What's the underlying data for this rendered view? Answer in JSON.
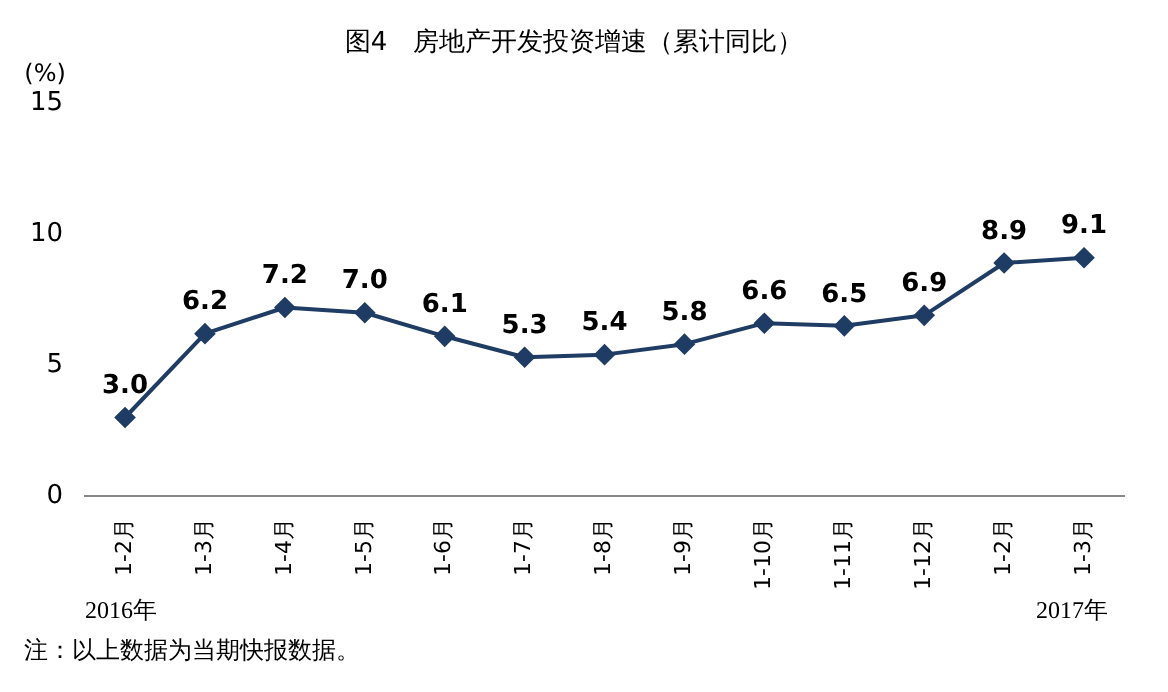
{
  "chart_data": {
    "type": "line",
    "title": "图4　房地产开发投资增速（累计同比）",
    "ylabel": "(%)",
    "categories": [
      "1-2月",
      "1-3月",
      "1-4月",
      "1-5月",
      "1-6月",
      "1-7月",
      "1-8月",
      "1-9月",
      "1-10月",
      "1-11月",
      "1-12月",
      "1-2月",
      "1-3月"
    ],
    "series": [
      {
        "color": "#1f3c64",
        "values": [
          3.0,
          6.2,
          7.2,
          7.0,
          6.1,
          5.3,
          5.4,
          5.8,
          6.6,
          6.5,
          6.9,
          8.9,
          9.1
        ],
        "value_labels": [
          "3.0",
          "6.2",
          "7.2",
          "7.0",
          "6.1",
          "5.3",
          "5.4",
          "5.8",
          "6.6",
          "6.5",
          "6.9",
          "8.9",
          "9.1"
        ]
      }
    ],
    "ylim": [
      0,
      15
    ],
    "yticks": [
      0,
      5,
      10,
      15
    ],
    "grid": false,
    "legend": false,
    "marker": "diamond",
    "line_style": "solid",
    "annotations": [
      "2016年",
      "2017年",
      "注：以上数据为当期快报数据。"
    ]
  }
}
